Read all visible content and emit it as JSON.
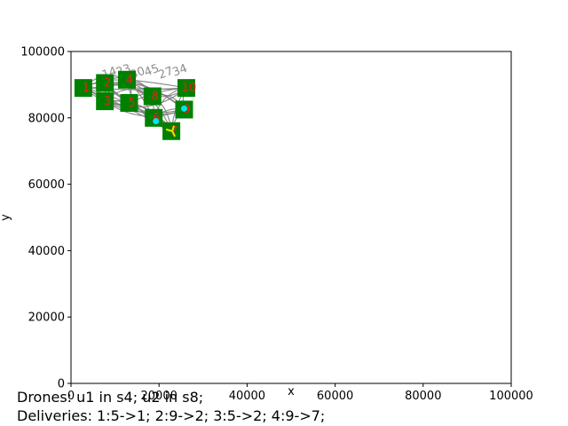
{
  "chart_data": {
    "type": "scatter",
    "title": "",
    "xlabel": "x",
    "ylabel": "y",
    "xlim": [
      0,
      100000
    ],
    "ylim": [
      0,
      100000
    ],
    "x_ticks": [
      0,
      20000,
      40000,
      60000,
      80000,
      100000
    ],
    "y_ticks": [
      0,
      20000,
      40000,
      60000,
      80000,
      100000
    ],
    "x_tick_labels": [
      "0",
      "20000",
      "40000",
      "60000",
      "80000",
      "100000"
    ],
    "y_tick_labels": [
      "0",
      "20000",
      "40000",
      "60000",
      "80000",
      "100000"
    ],
    "grid": false,
    "stations": [
      {
        "label": "1",
        "x": 2800,
        "y": 89000
      },
      {
        "label": "2",
        "x": 7700,
        "y": 90500
      },
      {
        "label": "3",
        "x": 7700,
        "y": 85000
      },
      {
        "label": "4",
        "x": 12700,
        "y": 91500
      },
      {
        "label": "5",
        "x": 13200,
        "y": 84500
      },
      {
        "label": "6",
        "x": 18800,
        "y": 80000
      },
      {
        "label": "7",
        "x": 22800,
        "y": 76000
      },
      {
        "label": "8",
        "x": 18500,
        "y": 86500
      },
      {
        "label": "9",
        "x": 25700,
        "y": 82500
      },
      {
        "label": "10",
        "x": 26200,
        "y": 89000
      }
    ],
    "drones": [
      {
        "x": 19300,
        "y": 79000
      },
      {
        "x": 25700,
        "y": 82800
      }
    ],
    "colors": {
      "station": "#008000",
      "station_number": "#e8201e",
      "route": "#808080",
      "drone": "#00e5ee",
      "highlight": "#e6e600"
    }
  },
  "status": {
    "drones": "Drones: u1 in s4; u2 in s8;",
    "deliveries": "Deliveries: 1:5->1; 2:9->2; 3:5->2; 4:9->7;"
  }
}
